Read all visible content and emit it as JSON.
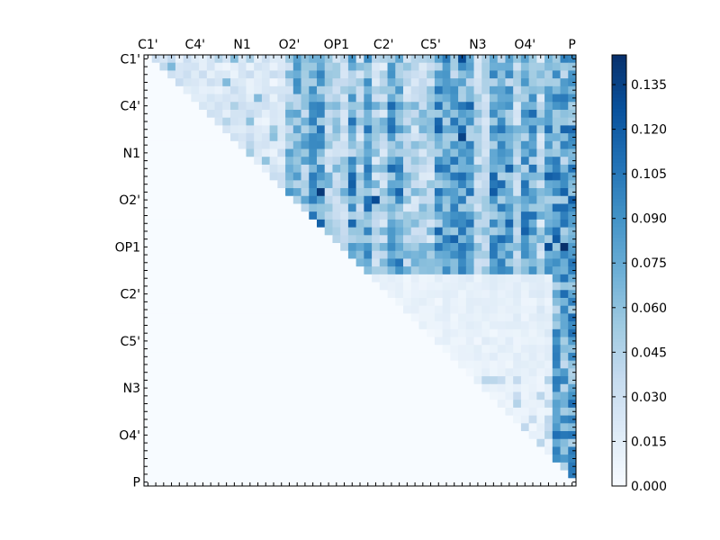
{
  "chart_data": {
    "type": "heatmap",
    "title": "",
    "labels": [
      "C1'",
      "C4'",
      "N1",
      "O2'",
      "OP1",
      "C2'",
      "C5'",
      "N3",
      "O4'",
      "P"
    ],
    "n": 55,
    "label_every": 6,
    "upper_triangle_only": true,
    "colormap": "Blues",
    "colorbar": {
      "vmin": 0.0,
      "vmax": 0.145,
      "ticks": [
        "0.000",
        "0.015",
        "0.030",
        "0.045",
        "0.060",
        "0.075",
        "0.090",
        "0.105",
        "0.120",
        "0.135"
      ]
    },
    "highlights": [
      {
        "row": 0,
        "col": 40,
        "value": 0.13
      },
      {
        "row": 10,
        "col": 40,
        "value": 0.135
      },
      {
        "row": 17,
        "col": 22,
        "value": 0.14
      },
      {
        "row": 18,
        "col": 29,
        "value": 0.13
      },
      {
        "row": 24,
        "col": 53,
        "value": 0.145
      },
      {
        "row": 24,
        "col": 51,
        "value": 0.13
      }
    ],
    "grid": false
  }
}
